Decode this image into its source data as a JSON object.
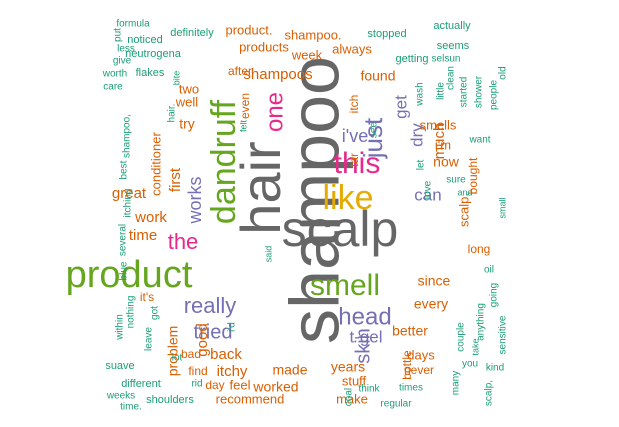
{
  "palette": {
    "gray": "#666666",
    "teal": "#1b9e77",
    "orange": "#d95f02",
    "purple": "#7570b3",
    "magenta": "#e7298a",
    "green": "#66a61e",
    "gold": "#e6ab02"
  },
  "words": [
    {
      "text": "shampoo",
      "color": "gray",
      "size": 70
    },
    {
      "text": "hair",
      "color": "gray",
      "size": 56
    },
    {
      "text": "scalp",
      "color": "gray",
      "size": 50
    },
    {
      "text": "product",
      "color": "green",
      "size": 38
    },
    {
      "text": "dandruff",
      "color": "green",
      "size": 34
    },
    {
      "text": "like",
      "color": "gold",
      "size": 34
    },
    {
      "text": "smell",
      "color": "green",
      "size": 30
    },
    {
      "text": "this",
      "color": "magenta",
      "size": 30
    },
    {
      "text": "just",
      "color": "purple",
      "size": 26
    },
    {
      "text": "head",
      "color": "purple",
      "size": 24
    },
    {
      "text": "one",
      "color": "magenta",
      "size": 24
    },
    {
      "text": "the",
      "color": "magenta",
      "size": 22
    },
    {
      "text": "really",
      "color": "purple",
      "size": 22
    },
    {
      "text": "tried",
      "color": "purple",
      "size": 20
    },
    {
      "text": "skin",
      "color": "purple",
      "size": 20
    },
    {
      "text": "works",
      "color": "purple",
      "size": 18
    },
    {
      "text": "i've",
      "color": "purple",
      "size": 18
    },
    {
      "text": "dry",
      "color": "purple",
      "size": 17
    },
    {
      "text": "get",
      "color": "purple",
      "size": 17
    },
    {
      "text": "can",
      "color": "purple",
      "size": 17
    },
    {
      "text": "t-gel",
      "color": "purple",
      "size": 17
    },
    {
      "text": "shampoos",
      "color": "orange",
      "size": 15
    },
    {
      "text": "back",
      "color": "orange",
      "size": 15
    },
    {
      "text": "itchy",
      "color": "orange",
      "size": 15
    },
    {
      "text": "first",
      "color": "orange",
      "size": 15
    },
    {
      "text": "great",
      "color": "orange",
      "size": 15
    },
    {
      "text": "time",
      "color": "orange",
      "size": 15
    },
    {
      "text": "work",
      "color": "orange",
      "size": 15
    },
    {
      "text": "good",
      "color": "orange",
      "size": 15
    },
    {
      "text": "much",
      "color": "orange",
      "size": 15
    },
    {
      "text": "now",
      "color": "orange",
      "size": 14
    },
    {
      "text": "found",
      "color": "orange",
      "size": 14
    },
    {
      "text": "made",
      "color": "orange",
      "size": 14
    },
    {
      "text": "years",
      "color": "orange",
      "size": 14
    },
    {
      "text": "worked",
      "color": "orange",
      "size": 14
    },
    {
      "text": "better",
      "color": "orange",
      "size": 14
    },
    {
      "text": "every",
      "color": "orange",
      "size": 14
    },
    {
      "text": "since",
      "color": "orange",
      "size": 14
    },
    {
      "text": "problem",
      "color": "orange",
      "size": 14
    },
    {
      "text": "conditioner",
      "color": "orange",
      "size": 13
    },
    {
      "text": "try",
      "color": "orange",
      "size": 14
    },
    {
      "text": "well",
      "color": "orange",
      "size": 13
    },
    {
      "text": "two",
      "color": "orange",
      "size": 13
    },
    {
      "text": "week",
      "color": "orange",
      "size": 13
    },
    {
      "text": "products",
      "color": "orange",
      "size": 13
    },
    {
      "text": "product.",
      "color": "orange",
      "size": 13
    },
    {
      "text": "shampoo.",
      "color": "orange",
      "size": 13
    },
    {
      "text": "always",
      "color": "orange",
      "size": 13
    },
    {
      "text": "feel",
      "color": "orange",
      "size": 13
    },
    {
      "text": "stuff",
      "color": "orange",
      "size": 13
    },
    {
      "text": "make",
      "color": "orange",
      "size": 13
    },
    {
      "text": "recommend",
      "color": "orange",
      "size": 13
    },
    {
      "text": "days",
      "color": "orange",
      "size": 13
    },
    {
      "text": "smells",
      "color": "orange",
      "size": 13
    },
    {
      "text": "i'm",
      "color": "orange",
      "size": 13
    },
    {
      "text": "scalp.",
      "color": "orange",
      "size": 13
    },
    {
      "text": "bad",
      "color": "orange",
      "size": 12
    },
    {
      "text": "find",
      "color": "orange",
      "size": 12
    },
    {
      "text": "day",
      "color": "orange",
      "size": 12
    },
    {
      "text": "it's",
      "color": "orange",
      "size": 12
    },
    {
      "text": "after",
      "color": "orange",
      "size": 12
    },
    {
      "text": "even",
      "color": "orange",
      "size": 12
    },
    {
      "text": "itch",
      "color": "orange",
      "size": 12
    },
    {
      "text": "tar",
      "color": "orange",
      "size": 12
    },
    {
      "text": "long",
      "color": "orange",
      "size": 12
    },
    {
      "text": "bottle",
      "color": "orange",
      "size": 12
    },
    {
      "text": "never",
      "color": "orange",
      "size": 12
    },
    {
      "text": "bought",
      "color": "orange",
      "size": 12
    },
    {
      "text": "neutrogena",
      "color": "teal",
      "size": 11
    },
    {
      "text": "definitely",
      "color": "teal",
      "size": 11
    },
    {
      "text": "stopped",
      "color": "teal",
      "size": 11
    },
    {
      "text": "actually",
      "color": "teal",
      "size": 11
    },
    {
      "text": "noticed",
      "color": "teal",
      "size": 11
    },
    {
      "text": "formula",
      "color": "teal",
      "size": 10
    },
    {
      "text": "less",
      "color": "teal",
      "size": 10
    },
    {
      "text": "give",
      "color": "teal",
      "size": 10
    },
    {
      "text": "worth",
      "color": "teal",
      "size": 10
    },
    {
      "text": "care",
      "color": "teal",
      "size": 10
    },
    {
      "text": "put",
      "color": "teal",
      "size": 10
    },
    {
      "text": "flakes",
      "color": "teal",
      "size": 11
    },
    {
      "text": "hair.",
      "color": "teal",
      "size": 10
    },
    {
      "text": "bite",
      "color": "teal",
      "size": 9
    },
    {
      "text": "seems",
      "color": "teal",
      "size": 11
    },
    {
      "text": "getting",
      "color": "teal",
      "size": 11
    },
    {
      "text": "selsun",
      "color": "teal",
      "size": 10
    },
    {
      "text": "started",
      "color": "teal",
      "size": 10
    },
    {
      "text": "clean",
      "color": "teal",
      "size": 10
    },
    {
      "text": "little",
      "color": "teal",
      "size": 10
    },
    {
      "text": "wash",
      "color": "teal",
      "size": 10
    },
    {
      "text": "shower",
      "color": "teal",
      "size": 10
    },
    {
      "text": "people",
      "color": "teal",
      "size": 10
    },
    {
      "text": "old",
      "color": "teal",
      "size": 10
    },
    {
      "text": "felt",
      "color": "teal",
      "size": 9
    },
    {
      "text": "see",
      "color": "teal",
      "size": 10
    },
    {
      "text": "let",
      "color": "teal",
      "size": 10
    },
    {
      "text": "love",
      "color": "teal",
      "size": 10
    },
    {
      "text": "sure",
      "color": "teal",
      "size": 10
    },
    {
      "text": "want",
      "color": "teal",
      "size": 10
    },
    {
      "text": "and",
      "color": "teal",
      "size": 9
    },
    {
      "text": "small",
      "color": "teal",
      "size": 9
    },
    {
      "text": "shampoo,",
      "color": "teal",
      "size": 10
    },
    {
      "text": "best",
      "color": "teal",
      "size": 10
    },
    {
      "text": "itching",
      "color": "teal",
      "size": 10
    },
    {
      "text": "several",
      "color": "teal",
      "size": 10
    },
    {
      "text": "blue",
      "color": "teal",
      "size": 10
    },
    {
      "text": "said",
      "color": "teal",
      "size": 9
    },
    {
      "text": "nothing",
      "color": "teal",
      "size": 10
    },
    {
      "text": "got",
      "color": "teal",
      "size": 10
    },
    {
      "text": "within",
      "color": "teal",
      "size": 10
    },
    {
      "text": "leave",
      "color": "teal",
      "size": 10
    },
    {
      "text": "i'd",
      "color": "teal",
      "size": 10
    },
    {
      "text": "lot",
      "color": "teal",
      "size": 10
    },
    {
      "text": "suave",
      "color": "teal",
      "size": 11
    },
    {
      "text": "different",
      "color": "teal",
      "size": 11
    },
    {
      "text": "rid",
      "color": "teal",
      "size": 10
    },
    {
      "text": "shoulders",
      "color": "teal",
      "size": 11
    },
    {
      "text": "weeks",
      "color": "teal",
      "size": 10
    },
    {
      "text": "time.",
      "color": "teal",
      "size": 10
    },
    {
      "text": "coal",
      "color": "teal",
      "size": 10
    },
    {
      "text": "think",
      "color": "teal",
      "size": 10
    },
    {
      "text": "regular",
      "color": "teal",
      "size": 10
    },
    {
      "text": "times",
      "color": "teal",
      "size": 10
    },
    {
      "text": "many",
      "color": "teal",
      "size": 10
    },
    {
      "text": "you",
      "color": "teal",
      "size": 10
    },
    {
      "text": "couple",
      "color": "teal",
      "size": 10
    },
    {
      "text": "take",
      "color": "teal",
      "size": 9
    },
    {
      "text": "anything",
      "color": "teal",
      "size": 10
    },
    {
      "text": "going",
      "color": "teal",
      "size": 10
    },
    {
      "text": "sensitive",
      "color": "teal",
      "size": 10
    },
    {
      "text": "kind",
      "color": "teal",
      "size": 10
    },
    {
      "text": "oil",
      "color": "teal",
      "size": 10
    },
    {
      "text": "scalp,",
      "color": "teal",
      "size": 10
    }
  ]
}
